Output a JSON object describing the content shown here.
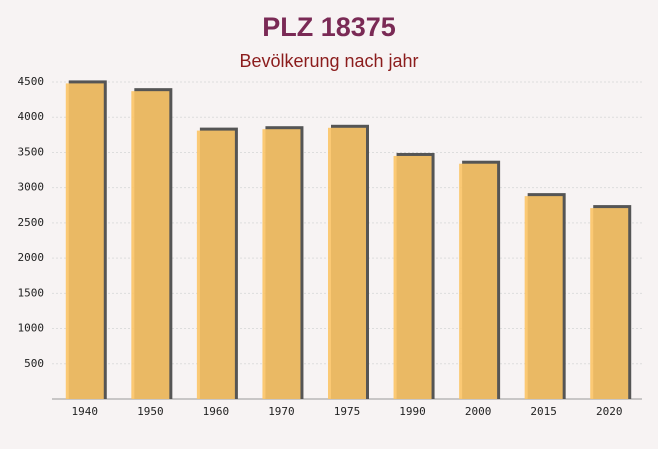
{
  "chart_data": {
    "type": "bar",
    "title": "PLZ 18375",
    "subtitle": "Bevölkerung nach jahr",
    "categories": [
      "1940",
      "1950",
      "1960",
      "1970",
      "1975",
      "1990",
      "2000",
      "2015",
      "2020"
    ],
    "values": [
      4480,
      4370,
      3810,
      3830,
      3850,
      3450,
      3340,
      2880,
      2710
    ],
    "color": "#fbc466",
    "ylim": [
      0,
      4500
    ],
    "yticks": [
      500,
      1000,
      1500,
      2000,
      2500,
      3000,
      3500,
      4000,
      4500
    ],
    "grid": true
  }
}
